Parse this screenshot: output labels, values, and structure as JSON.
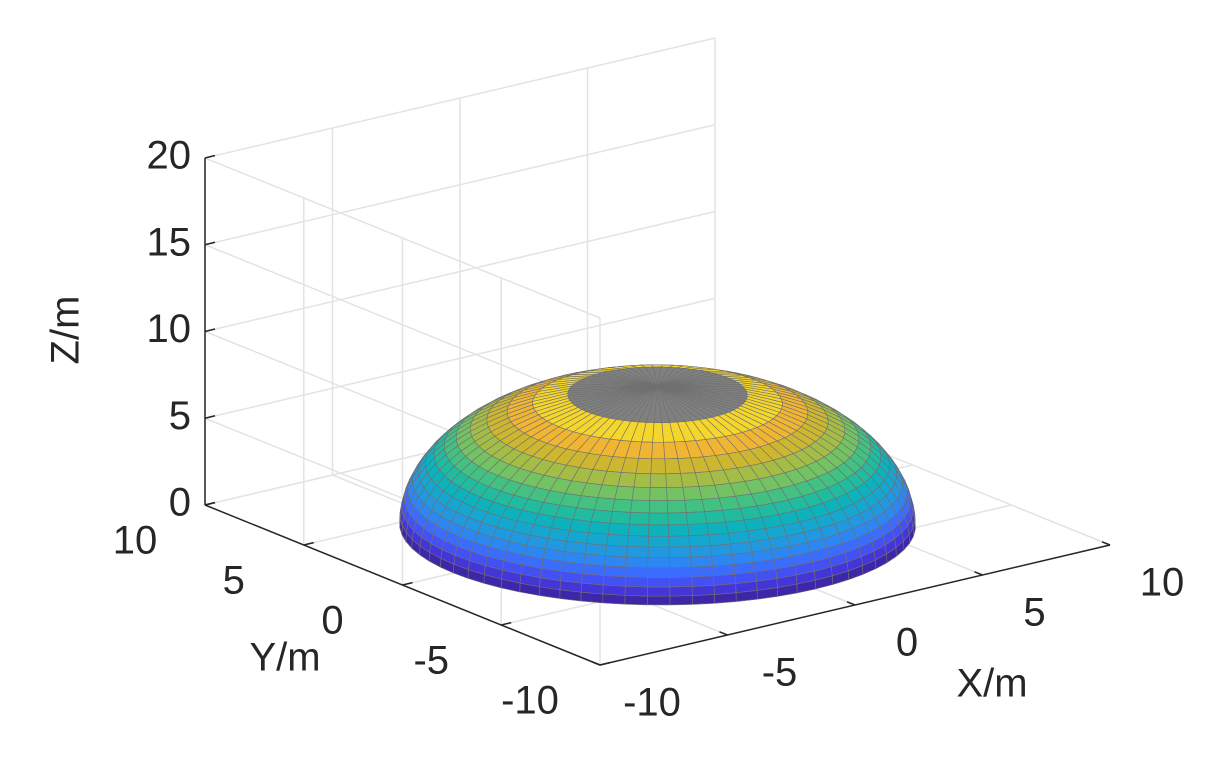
{
  "chart_data": {
    "type": "surface3d",
    "xlabel": "X/m",
    "ylabel": "Y/m",
    "zlabel": "Z/m",
    "xlim": [
      -10,
      10
    ],
    "ylim": [
      -10,
      10
    ],
    "zlim": [
      0,
      20
    ],
    "xticks": [
      -10,
      -5,
      0,
      5,
      10
    ],
    "yticks": [
      -10,
      -5,
      0,
      5,
      10
    ],
    "zticks": [
      0,
      5,
      10,
      15,
      20
    ],
    "grid": true,
    "surface": {
      "radius": 8,
      "height": 8,
      "z": [
        0,
        0.5,
        1,
        1.5,
        2,
        2.5,
        3,
        3.5,
        4,
        4.5,
        5,
        5.5,
        6,
        6.5,
        7,
        7.5,
        8
      ],
      "colors": [
        "#3e26a8",
        "#4435d9",
        "#4350f3",
        "#3a6cfd",
        "#2c87f3",
        "#2198e0",
        "#16a7d0",
        "#0db2bc",
        "#21bba0",
        "#42c183",
        "#73c263",
        "#a3bd46",
        "#cdb731",
        "#f0b532",
        "#f5d62a",
        "#808080"
      ],
      "edge_color": "#707070"
    }
  }
}
